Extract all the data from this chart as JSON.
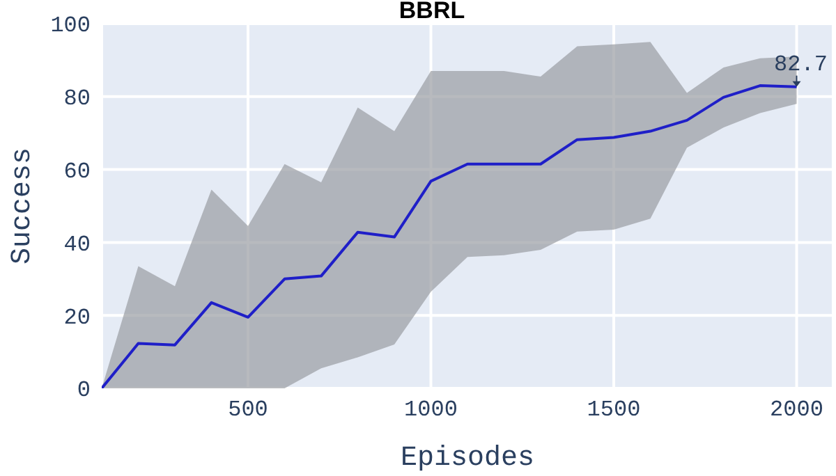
{
  "chart_data": {
    "type": "line",
    "title": "BBRL",
    "xlabel": "Episodes",
    "ylabel": "Success",
    "x": [
      100,
      200,
      300,
      400,
      500,
      600,
      700,
      800,
      900,
      1000,
      1100,
      1200,
      1300,
      1400,
      1500,
      1600,
      1700,
      1800,
      1900,
      2000
    ],
    "series": [
      {
        "color": "#1f1fc8",
        "values": [
          0,
          12.3,
          11.9,
          23.5,
          19.5,
          30,
          30.8,
          42.8,
          41.5,
          56.8,
          61.5,
          61.5,
          61.5,
          68.2,
          68.8,
          70.5,
          73.5,
          79.8,
          83,
          82.7
        ],
        "lower": [
          0,
          0,
          0,
          0,
          0,
          0,
          5.5,
          8.5,
          12,
          26.5,
          36,
          36.5,
          38,
          43,
          43.5,
          46.5,
          66,
          71.5,
          75.5,
          78
        ],
        "upper": [
          0,
          33.5,
          28,
          54.5,
          44.5,
          61.5,
          56.5,
          77,
          70.5,
          87,
          87,
          87,
          85.5,
          93.8,
          94.3,
          95,
          81,
          88,
          90.5,
          91
        ]
      }
    ],
    "xlim": [
      100,
      2100
    ],
    "xticks": [
      500,
      1000,
      1500,
      2000
    ],
    "ylim": [
      0,
      100
    ],
    "yticks": [
      0,
      20,
      40,
      60,
      80,
      100
    ],
    "grid": true,
    "legend": false,
    "marker": "none",
    "line_style": "solid",
    "annotations": [
      {
        "text": "82.7",
        "x": 2000,
        "y": 82.7
      }
    ]
  }
}
